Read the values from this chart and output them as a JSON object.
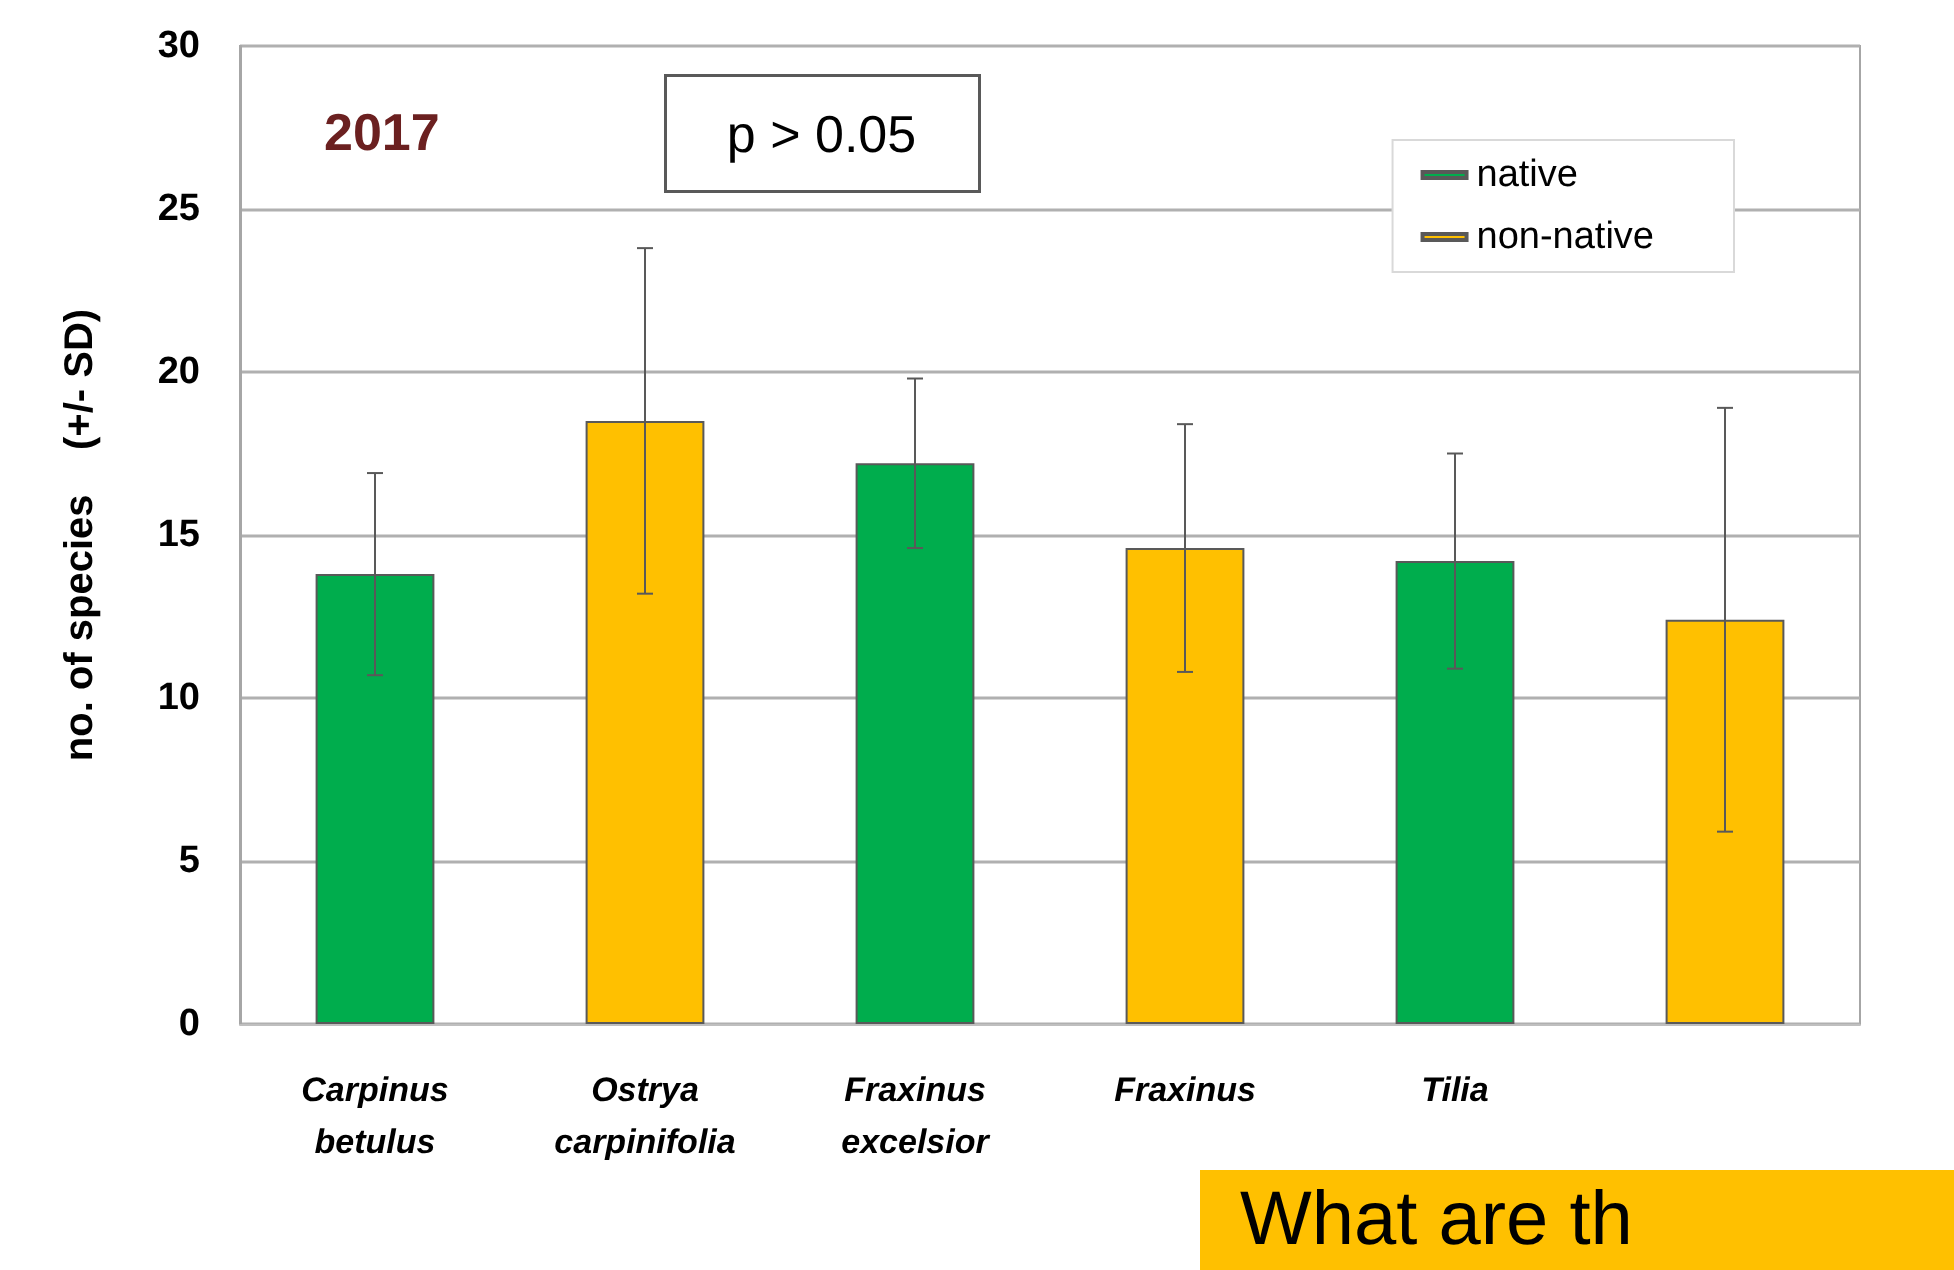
{
  "chart_data": {
    "type": "bar",
    "ylabel": "no. of species    (+/- SD)",
    "categories": [
      "Carpinus betulus",
      "Ostrya carpinifolia",
      "Fraxinus excelsior",
      "Fraxinus",
      "Tilia",
      null
    ],
    "series": [
      {
        "name": "native",
        "color": "#00ad4d",
        "values": [
          13.8,
          null,
          17.2,
          null,
          14.2,
          null
        ],
        "errors": [
          3.1,
          null,
          2.6,
          null,
          3.3,
          null
        ]
      },
      {
        "name": "non-native",
        "color": "#ffc000",
        "values": [
          null,
          18.5,
          null,
          14.6,
          null,
          12.4
        ],
        "errors": [
          null,
          5.3,
          null,
          3.8,
          null,
          6.5
        ]
      }
    ],
    "ylim": [
      0,
      30
    ],
    "yticks": [
      0,
      5,
      10,
      15,
      20,
      25,
      30
    ],
    "grid": "y",
    "legend": "top right",
    "annotations": [
      "2017",
      "p > 0.05",
      "What are th"
    ]
  }
}
